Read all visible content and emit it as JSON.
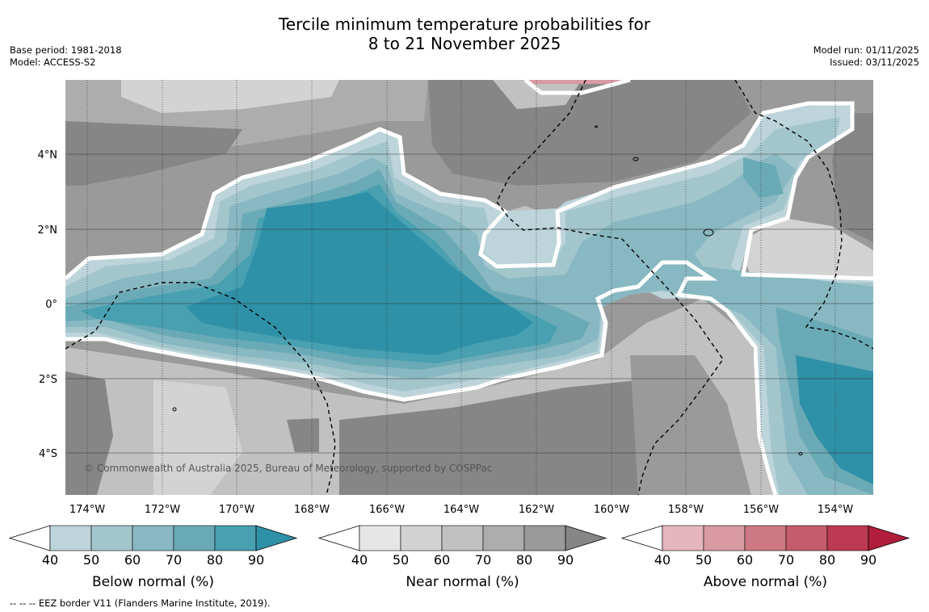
{
  "title": {
    "line1": "Tercile minimum temperature probabilities for",
    "line2": "8 to 21 November 2025"
  },
  "meta": {
    "base_period": "Base period: 1981-2018",
    "model": "Model: ACCESS-S2",
    "model_run": "Model run: 01/11/2025",
    "issued": "Issued: 03/11/2025"
  },
  "map": {
    "copyright": "© Commonwealth of Australia 2025, Bureau of Meteorology, supported by COSPPac",
    "lon_labels": [
      "174°W",
      "172°W",
      "170°W",
      "168°W",
      "166°W",
      "164°W",
      "162°W",
      "160°W",
      "158°W",
      "156°W",
      "154°W"
    ],
    "lat_labels": [
      "4°N",
      "2°N",
      "0°",
      "2°S",
      "4°S"
    ]
  },
  "colorbars": [
    {
      "id": "below",
      "title": "Below normal (%)",
      "ticks": [
        "40",
        "50",
        "60",
        "70",
        "80",
        "90"
      ],
      "colors": [
        "#bcd4da",
        "#a3c6cd",
        "#88b8c1",
        "#6aaab6",
        "#48a0b1",
        "#2f91a7"
      ]
    },
    {
      "id": "near",
      "title": "Near normal (%)",
      "ticks": [
        "40",
        "50",
        "60",
        "70",
        "80",
        "90"
      ],
      "colors": [
        "#e6e6e6",
        "#d3d3d3",
        "#c1c1c1",
        "#adadad",
        "#9a9a9a",
        "#868686"
      ]
    },
    {
      "id": "above",
      "title": "Above normal (%)",
      "ticks": [
        "40",
        "50",
        "60",
        "70",
        "80",
        "90"
      ],
      "colors": [
        "#e5b6bd",
        "#d99aa3",
        "#cd7882",
        "#c45c6c",
        "#bc3a52",
        "#b01e3c"
      ]
    }
  ],
  "footer": {
    "legend": "--  --  -- EEZ border V11 (Flanders Marine Institute, 2019)."
  }
}
